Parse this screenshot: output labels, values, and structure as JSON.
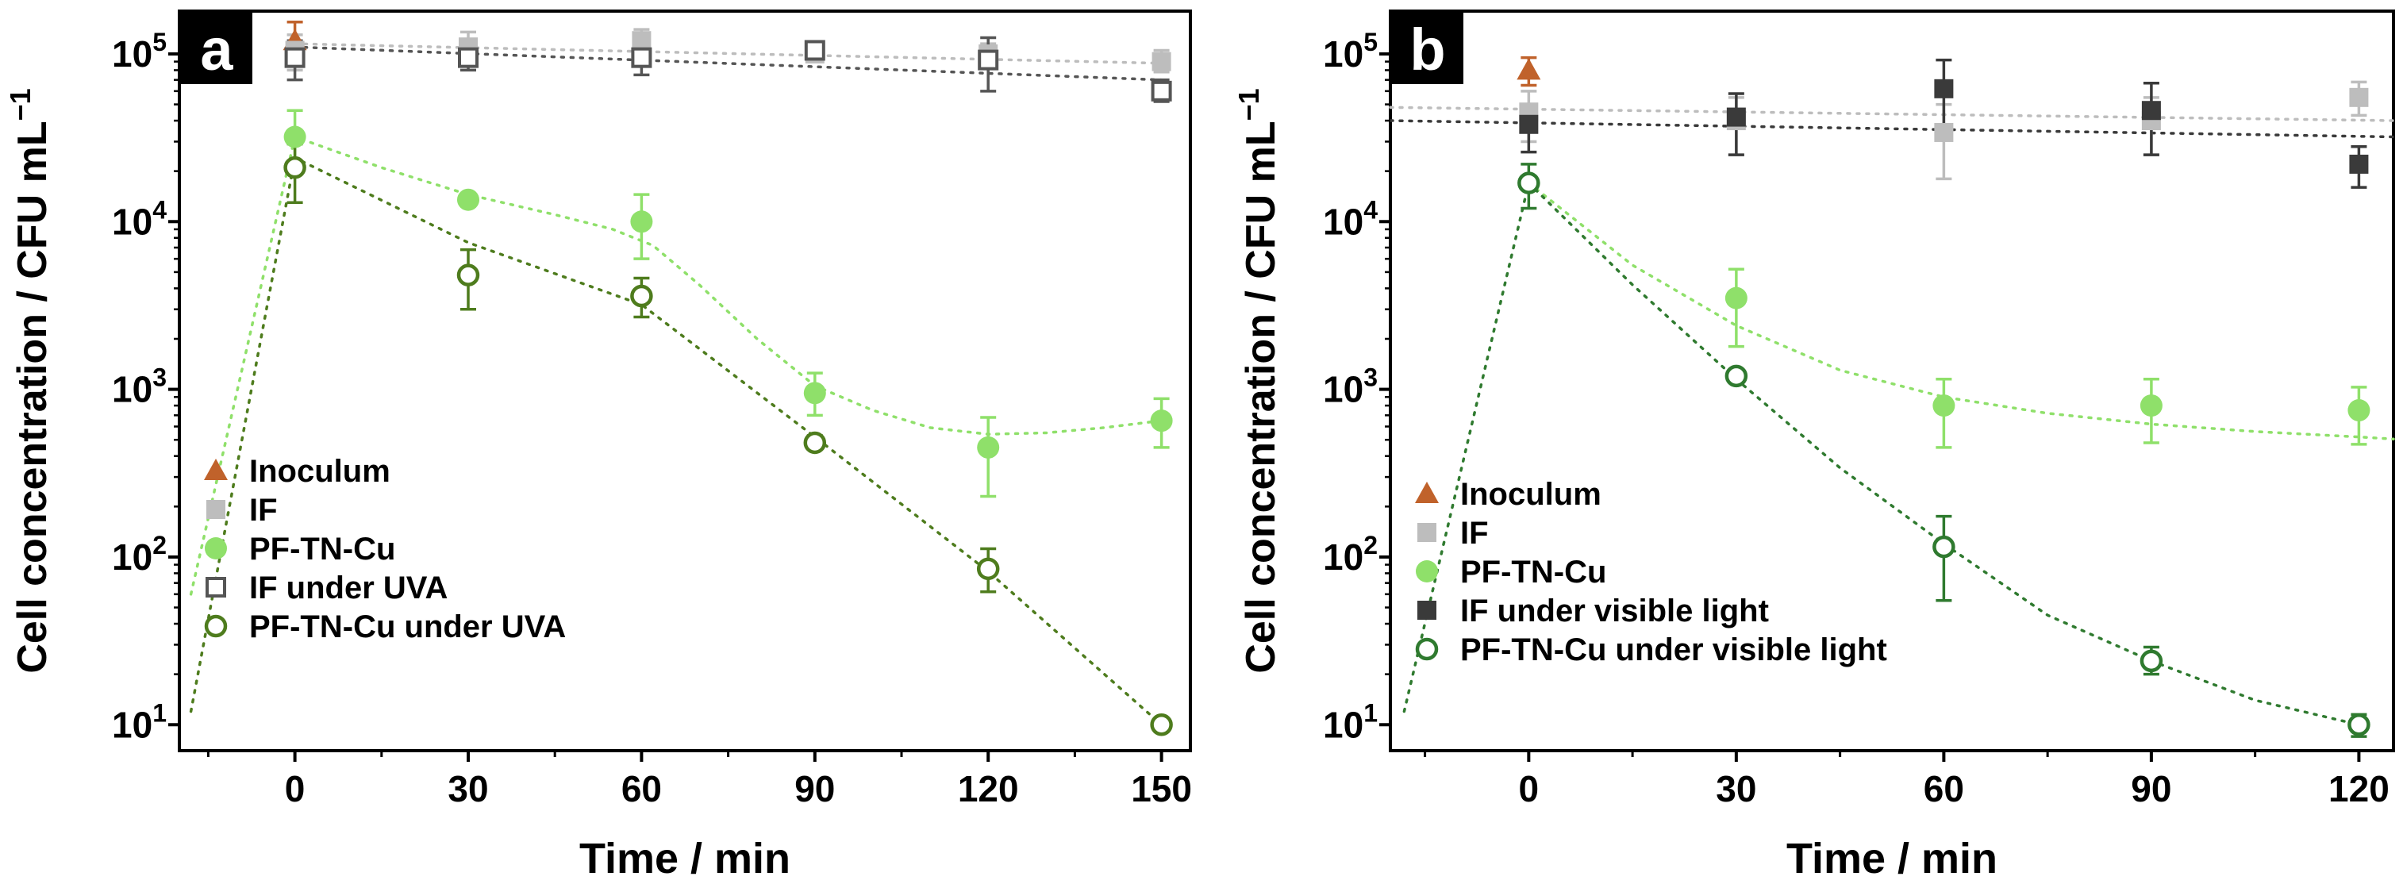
{
  "chart_data": [
    {
      "panel_label": "a",
      "type": "scatter",
      "xlabel": "Time / min",
      "ylabel": "Cell concentration / CFU mL",
      "ylabel_superscript": "−1",
      "xlim": [
        -20,
        155
      ],
      "ylim": [
        7,
        180000
      ],
      "y_scale": "log",
      "xticks": [
        "0",
        "30",
        "60",
        "90",
        "120",
        "150"
      ],
      "yticks": [
        {
          "base": "10",
          "exp": "1"
        },
        {
          "base": "10",
          "exp": "2"
        },
        {
          "base": "10",
          "exp": "3"
        },
        {
          "base": "10",
          "exp": "4"
        },
        {
          "base": "10",
          "exp": "5"
        }
      ],
      "legend_position": "bottom-left",
      "series": [
        {
          "name": "Inoculum",
          "marker": "triangle",
          "color": "#c0622b",
          "points": [
            [
              0,
              120000,
              90000,
              155000
            ]
          ],
          "fit": []
        },
        {
          "name": "IF",
          "marker": "square-filled",
          "color": "#bdbdbd",
          "points": [
            [
              0,
              105000,
              80000,
              130000
            ],
            [
              30,
              110000,
              90000,
              135000
            ],
            [
              60,
              120000,
              100000,
              140000
            ],
            [
              90,
              100000,
              90000,
              110000
            ],
            [
              120,
              100000,
              85000,
              115000
            ],
            [
              150,
              90000,
              78000,
              105000
            ]
          ],
          "fit": [
            [
              0,
              115000
            ],
            [
              150,
              88000
            ]
          ]
        },
        {
          "name": "PF-TN-Cu",
          "marker": "circle-filled",
          "color": "#8fe06a",
          "points": [
            [
              0,
              32000,
              22000,
              46000
            ],
            [
              30,
              13500,
              12500,
              14500
            ],
            [
              60,
              10000,
              6000,
              14500
            ],
            [
              90,
              950,
              700,
              1250
            ],
            [
              120,
              450,
              230,
              680
            ],
            [
              150,
              650,
              450,
              880
            ]
          ],
          "fit": [
            [
              -18,
              60
            ],
            [
              0,
              32000
            ],
            [
              15,
              21000
            ],
            [
              30,
              14500
            ],
            [
              45,
              11000
            ],
            [
              55,
              9000
            ],
            [
              62,
              7200
            ],
            [
              70,
              4200
            ],
            [
              80,
              2000
            ],
            [
              90,
              1050
            ],
            [
              100,
              750
            ],
            [
              110,
              590
            ],
            [
              120,
              540
            ],
            [
              130,
              550
            ],
            [
              140,
              590
            ],
            [
              150,
              650
            ]
          ]
        },
        {
          "name": "IF under UVA",
          "marker": "square-open",
          "color": "#555555",
          "points": [
            [
              0,
              95000,
              70000,
              120000
            ],
            [
              30,
              95000,
              80000,
              120000
            ],
            [
              60,
              95000,
              75000,
              125000
            ],
            [
              90,
              105000,
              95000,
              115000
            ],
            [
              120,
              92000,
              60000,
              125000
            ],
            [
              150,
              60000,
              52000,
              70000
            ]
          ],
          "fit": [
            [
              0,
              110000
            ],
            [
              150,
              70000
            ]
          ]
        },
        {
          "name": "PF-TN-Cu under UVA",
          "marker": "circle-open",
          "color": "#4e7c1d",
          "points": [
            [
              0,
              21000,
              13000,
              29000
            ],
            [
              30,
              4800,
              3000,
              6800
            ],
            [
              60,
              3600,
              2700,
              4600
            ],
            [
              90,
              480,
              440,
              530
            ],
            [
              120,
              85,
              62,
              112
            ],
            [
              150,
              10,
              10,
              10
            ]
          ],
          "fit": [
            [
              -18,
              12
            ],
            [
              0,
              24000
            ],
            [
              30,
              7500
            ],
            [
              60,
              3200
            ],
            [
              90,
              520
            ],
            [
              120,
              82
            ],
            [
              150,
              10
            ]
          ]
        }
      ]
    },
    {
      "panel_label": "b",
      "type": "scatter",
      "xlabel": "Time / min",
      "ylabel": "Cell concentration / CFU mL",
      "ylabel_superscript": "−1",
      "xlim": [
        -20,
        125
      ],
      "ylim": [
        7,
        180000
      ],
      "y_scale": "log",
      "xticks": [
        "0",
        "30",
        "60",
        "90",
        "120"
      ],
      "yticks": [
        {
          "base": "10",
          "exp": "1"
        },
        {
          "base": "10",
          "exp": "2"
        },
        {
          "base": "10",
          "exp": "3"
        },
        {
          "base": "10",
          "exp": "4"
        },
        {
          "base": "10",
          "exp": "5"
        }
      ],
      "legend_position": "bottom-left",
      "series": [
        {
          "name": "Inoculum",
          "marker": "triangle",
          "color": "#c0622b",
          "points": [
            [
              0,
              80000,
              65000,
              95000
            ]
          ],
          "fit": []
        },
        {
          "name": "IF",
          "marker": "square-filled",
          "color": "#bdbdbd",
          "points": [
            [
              0,
              45000,
              30000,
              60000
            ],
            [
              30,
              40000,
              25000,
              55000
            ],
            [
              60,
              34000,
              18000,
              50000
            ],
            [
              90,
              40000,
              25000,
              55000
            ],
            [
              120,
              55000,
              43000,
              68000
            ]
          ],
          "fit": [
            [
              -20,
              48000
            ],
            [
              125,
              40000
            ]
          ]
        },
        {
          "name": "PF-TN-Cu",
          "marker": "circle-filled",
          "color": "#8fe06a",
          "points": [
            [
              30,
              3500,
              1800,
              5200
            ],
            [
              60,
              800,
              450,
              1150
            ],
            [
              90,
              800,
              480,
              1150
            ],
            [
              120,
              750,
              470,
              1030
            ]
          ],
          "fit": [
            [
              0,
              17000
            ],
            [
              15,
              5500
            ],
            [
              30,
              2400
            ],
            [
              45,
              1300
            ],
            [
              60,
              900
            ],
            [
              75,
              720
            ],
            [
              90,
              620
            ],
            [
              105,
              560
            ],
            [
              120,
              520
            ],
            [
              125,
              505
            ]
          ]
        },
        {
          "name": "IF under visible light",
          "marker": "square-filled",
          "color": "#3a3a3a",
          "points": [
            [
              0,
              38000,
              26000,
              50000
            ],
            [
              30,
              42000,
              25000,
              58000
            ],
            [
              60,
              62000,
              32000,
              92000
            ],
            [
              90,
              46000,
              25000,
              67000
            ],
            [
              120,
              22000,
              16000,
              28000
            ]
          ],
          "fit": [
            [
              -20,
              40000
            ],
            [
              125,
              32000
            ]
          ]
        },
        {
          "name": "PF-TN-Cu under visible light",
          "marker": "circle-open",
          "color": "#2f7a2f",
          "points": [
            [
              0,
              17000,
              12000,
              22000
            ],
            [
              30,
              1200,
              1100,
              1300
            ],
            [
              60,
              115,
              55,
              175
            ],
            [
              90,
              24,
              20,
              29
            ],
            [
              120,
              10,
              8.5,
              11.5
            ]
          ],
          "fit": [
            [
              -18,
              12
            ],
            [
              0,
              17000
            ],
            [
              15,
              4200
            ],
            [
              30,
              1150
            ],
            [
              45,
              340
            ],
            [
              60,
              120
            ],
            [
              75,
              45
            ],
            [
              90,
              24
            ],
            [
              105,
              14
            ],
            [
              120,
              10
            ]
          ]
        }
      ]
    }
  ]
}
